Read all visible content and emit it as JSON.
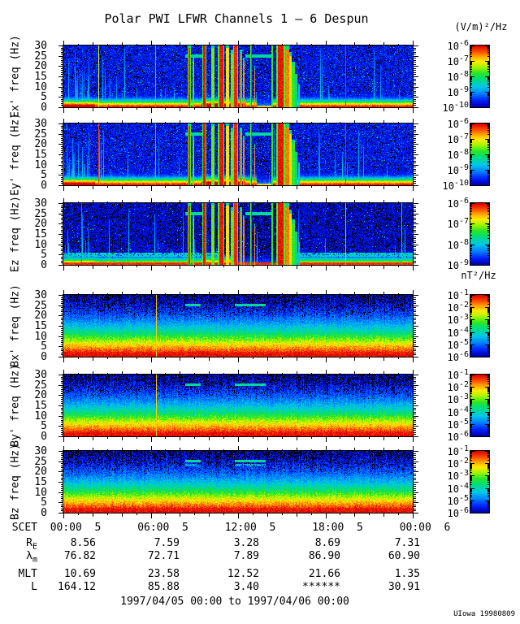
{
  "title": "Polar PWI LFWR Channels 1 — 6 Despun",
  "units_top": "(V/m)²/Hz",
  "units_mid": "nT²/Hz",
  "date_range": "1997/04/05 00:00 to 1997/04/06 00:00",
  "credit": "UIowa 19980809",
  "chart_data": {
    "type": "heatmap",
    "title": "Polar PWI LFWR Channels 1 — 6 Despun",
    "x_axis": {
      "label": "SCET",
      "start": "1997/04/05 00:00",
      "end": "1997/04/06 00:00",
      "hours": 24
    },
    "yticks": [
      "30",
      "25",
      "20",
      "15",
      "10",
      "5",
      "0"
    ],
    "freq_range_hz": [
      0,
      30
    ],
    "cbar_base": "10",
    "panels": [
      {
        "id": "ex",
        "ylabel": "Ex' freq (Hz)",
        "type": "E",
        "units": "(V/m)²/Hz",
        "cbar_exps": [
          "-6",
          "-7",
          "-8",
          "-9",
          "-10"
        ],
        "verticals": [
          [
            0.1,
            0.72
          ],
          [
            0.263,
            0.86
          ],
          [
            0.806,
            0.94
          ]
        ]
      },
      {
        "id": "ey",
        "ylabel": "Ey' freq (Hz)",
        "type": "E",
        "units": "(V/m)²/Hz",
        "cbar_exps": [
          "-6",
          "-7",
          "-8",
          "-9",
          "-10"
        ],
        "verticals": [
          [
            0.1,
            0.92
          ],
          [
            0.263,
            0.86
          ],
          [
            0.806,
            0.94
          ]
        ]
      },
      {
        "id": "ez",
        "ylabel": "Ez freq (Hz)",
        "type": "E",
        "units": "(V/m)²/Hz",
        "cbar_exps": [
          "-6",
          "-7",
          "-8",
          "-9"
        ],
        "dark": true,
        "cyan_band": 5,
        "red_base": true,
        "verticals": [
          [
            0.052,
            0.94
          ],
          [
            0.806,
            0.62
          ],
          [
            0.968,
            0.5
          ]
        ]
      },
      {
        "id": "bx",
        "ylabel": "Bx' freq (Hz)",
        "type": "B",
        "units": "nT²/Hz",
        "cbar_exps": [
          "-1",
          "-2",
          "-3",
          "-4",
          "-5",
          "-6"
        ],
        "verticals": [
          [
            0.265,
            0.78
          ]
        ]
      },
      {
        "id": "by",
        "ylabel": "By' freq (Hz)",
        "type": "B",
        "units": "nT²/Hz",
        "cbar_exps": [
          "-1",
          "-2",
          "-3",
          "-4",
          "-5",
          "-6"
        ],
        "verticals": [
          [
            0.265,
            0.78
          ]
        ]
      },
      {
        "id": "bz",
        "ylabel": "Bz freq (Hz)",
        "type": "B",
        "units": "nT²/Hz",
        "cbar_exps": [
          "-1",
          "-2",
          "-3",
          "-4",
          "-5",
          "-6"
        ],
        "verticals": [],
        "extra_dash": 23
      }
    ],
    "dash_freq": 25,
    "e_dash_segments": [
      [
        0.35,
        0.398
      ],
      [
        0.52,
        0.6
      ]
    ],
    "b_dash_segments": [
      [
        0.35,
        0.392
      ],
      [
        0.49,
        0.578
      ]
    ],
    "e_burst_columns": [
      [
        0.36,
        0.004,
        0.95,
        29
      ],
      [
        0.372,
        0.003,
        0.58,
        22
      ],
      [
        0.403,
        0.006,
        0.97,
        30
      ],
      [
        0.428,
        0.004,
        0.6,
        29
      ],
      [
        0.452,
        0.009,
        0.97,
        30
      ],
      [
        0.47,
        0.004,
        0.75,
        29
      ],
      [
        0.482,
        0.003,
        0.6,
        26
      ],
      [
        0.493,
        0.006,
        0.95,
        30
      ],
      [
        0.508,
        0.003,
        0.92,
        26
      ],
      [
        0.517,
        0.002,
        0.85,
        22
      ],
      [
        0.538,
        0.002,
        0.93,
        30
      ],
      [
        0.548,
        0.002,
        0.85,
        18
      ],
      [
        0.598,
        0.003,
        0.55,
        30
      ],
      [
        0.622,
        0.013,
        0.97,
        30
      ],
      [
        0.641,
        0.005,
        0.86,
        28
      ],
      [
        0.65,
        0.004,
        0.7,
        25
      ],
      [
        0.658,
        0.004,
        0.55,
        20
      ],
      [
        0.666,
        0.004,
        0.42,
        14
      ],
      [
        0.674,
        0.003,
        0.36,
        9
      ]
    ],
    "ephemeris": {
      "rows": [
        {
          "label": "SCET",
          "sub": "",
          "values": [
            "00:00  5",
            "06:00  5",
            "12:00  5",
            "18:00  5",
            "00:00  6"
          ]
        },
        {
          "label": "R",
          "sub": "E",
          "values": [
            "8.56",
            "7.59",
            "3.28",
            "8.69",
            "7.31"
          ]
        },
        {
          "label": "λ",
          "sub": "m",
          "values": [
            "76.82",
            "72.71",
            "7.89",
            "86.90",
            "60.90"
          ]
        },
        {
          "label": "MLT",
          "sub": "",
          "values": [
            "10.69",
            "23.58",
            "12.52",
            "21.66",
            "1.35"
          ]
        },
        {
          "label": "L",
          "sub": "",
          "values": [
            "164.12",
            "85.88",
            "3.40",
            "******",
            "30.91"
          ]
        }
      ]
    }
  }
}
